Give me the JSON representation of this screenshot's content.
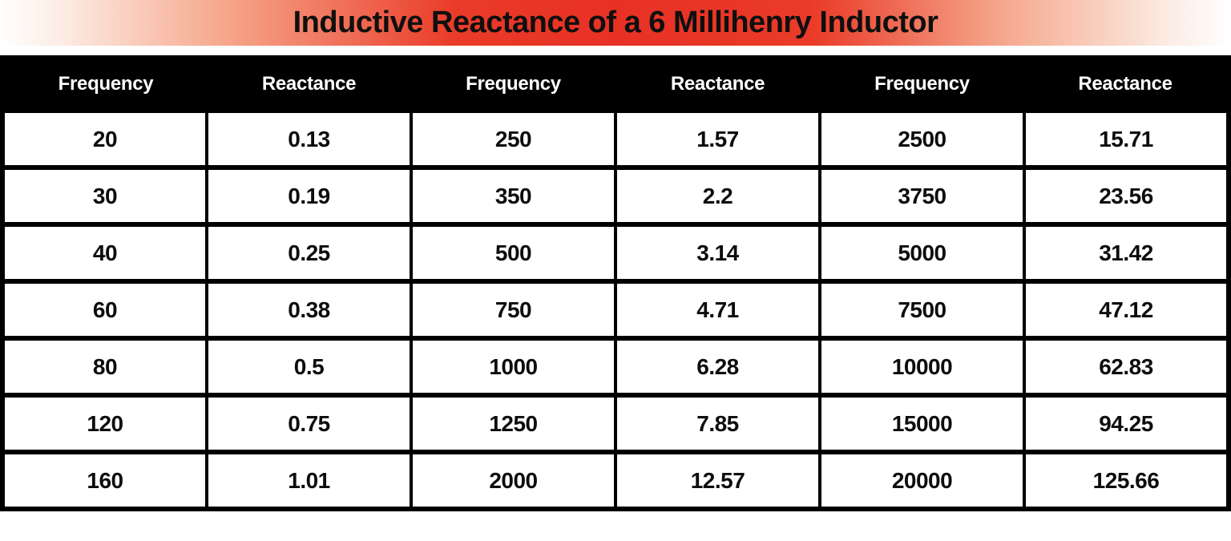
{
  "title": "Inductive Reactance of a 6 Millihenry Inductor",
  "colors": {
    "banner_red": "#e73125",
    "banner_salmon": "#f6a88d",
    "banner_edge": "#ffffff",
    "header_bg": "#000000",
    "header_text": "#ffffff",
    "cell_text": "#0d0d0d",
    "grid_border": "#000000"
  },
  "table": {
    "headers": [
      "Frequency",
      "Reactance",
      "Frequency",
      "Reactance",
      "Frequency",
      "Reactance"
    ],
    "rows": [
      [
        "20",
        "0.13",
        "250",
        "1.57",
        "2500",
        "15.71"
      ],
      [
        "30",
        "0.19",
        "350",
        "2.2",
        "3750",
        "23.56"
      ],
      [
        "40",
        "0.25",
        "500",
        "3.14",
        "5000",
        "31.42"
      ],
      [
        "60",
        "0.38",
        "750",
        "4.71",
        "7500",
        "47.12"
      ],
      [
        "80",
        "0.5",
        "1000",
        "6.28",
        "10000",
        "62.83"
      ],
      [
        "120",
        "0.75",
        "1250",
        "7.85",
        "15000",
        "94.25"
      ],
      [
        "160",
        "1.01",
        "2000",
        "12.57",
        "20000",
        "125.66"
      ]
    ]
  },
  "chart_data": {
    "type": "table",
    "title": "Inductive Reactance of a 6 Millihenry Inductor",
    "columns": [
      "Frequency",
      "Reactance",
      "Frequency",
      "Reactance",
      "Frequency",
      "Reactance"
    ],
    "rows": [
      [
        20,
        0.13,
        250,
        1.57,
        2500,
        15.71
      ],
      [
        30,
        0.19,
        350,
        2.2,
        3750,
        23.56
      ],
      [
        40,
        0.25,
        500,
        3.14,
        5000,
        31.42
      ],
      [
        60,
        0.38,
        750,
        4.71,
        7500,
        47.12
      ],
      [
        80,
        0.5,
        1000,
        6.28,
        10000,
        62.83
      ],
      [
        120,
        0.75,
        1250,
        7.85,
        15000,
        94.25
      ],
      [
        160,
        1.01,
        2000,
        12.57,
        20000,
        125.66
      ]
    ],
    "frequencies": [
      20,
      30,
      40,
      60,
      80,
      120,
      160,
      250,
      350,
      500,
      750,
      1000,
      1250,
      2000,
      2500,
      3750,
      5000,
      7500,
      10000,
      15000,
      20000
    ],
    "reactances": [
      0.13,
      0.19,
      0.25,
      0.38,
      0.5,
      0.75,
      1.01,
      1.57,
      2.2,
      3.14,
      4.71,
      6.28,
      7.85,
      12.57,
      15.71,
      23.56,
      31.42,
      47.12,
      62.83,
      94.25,
      125.66
    ]
  }
}
